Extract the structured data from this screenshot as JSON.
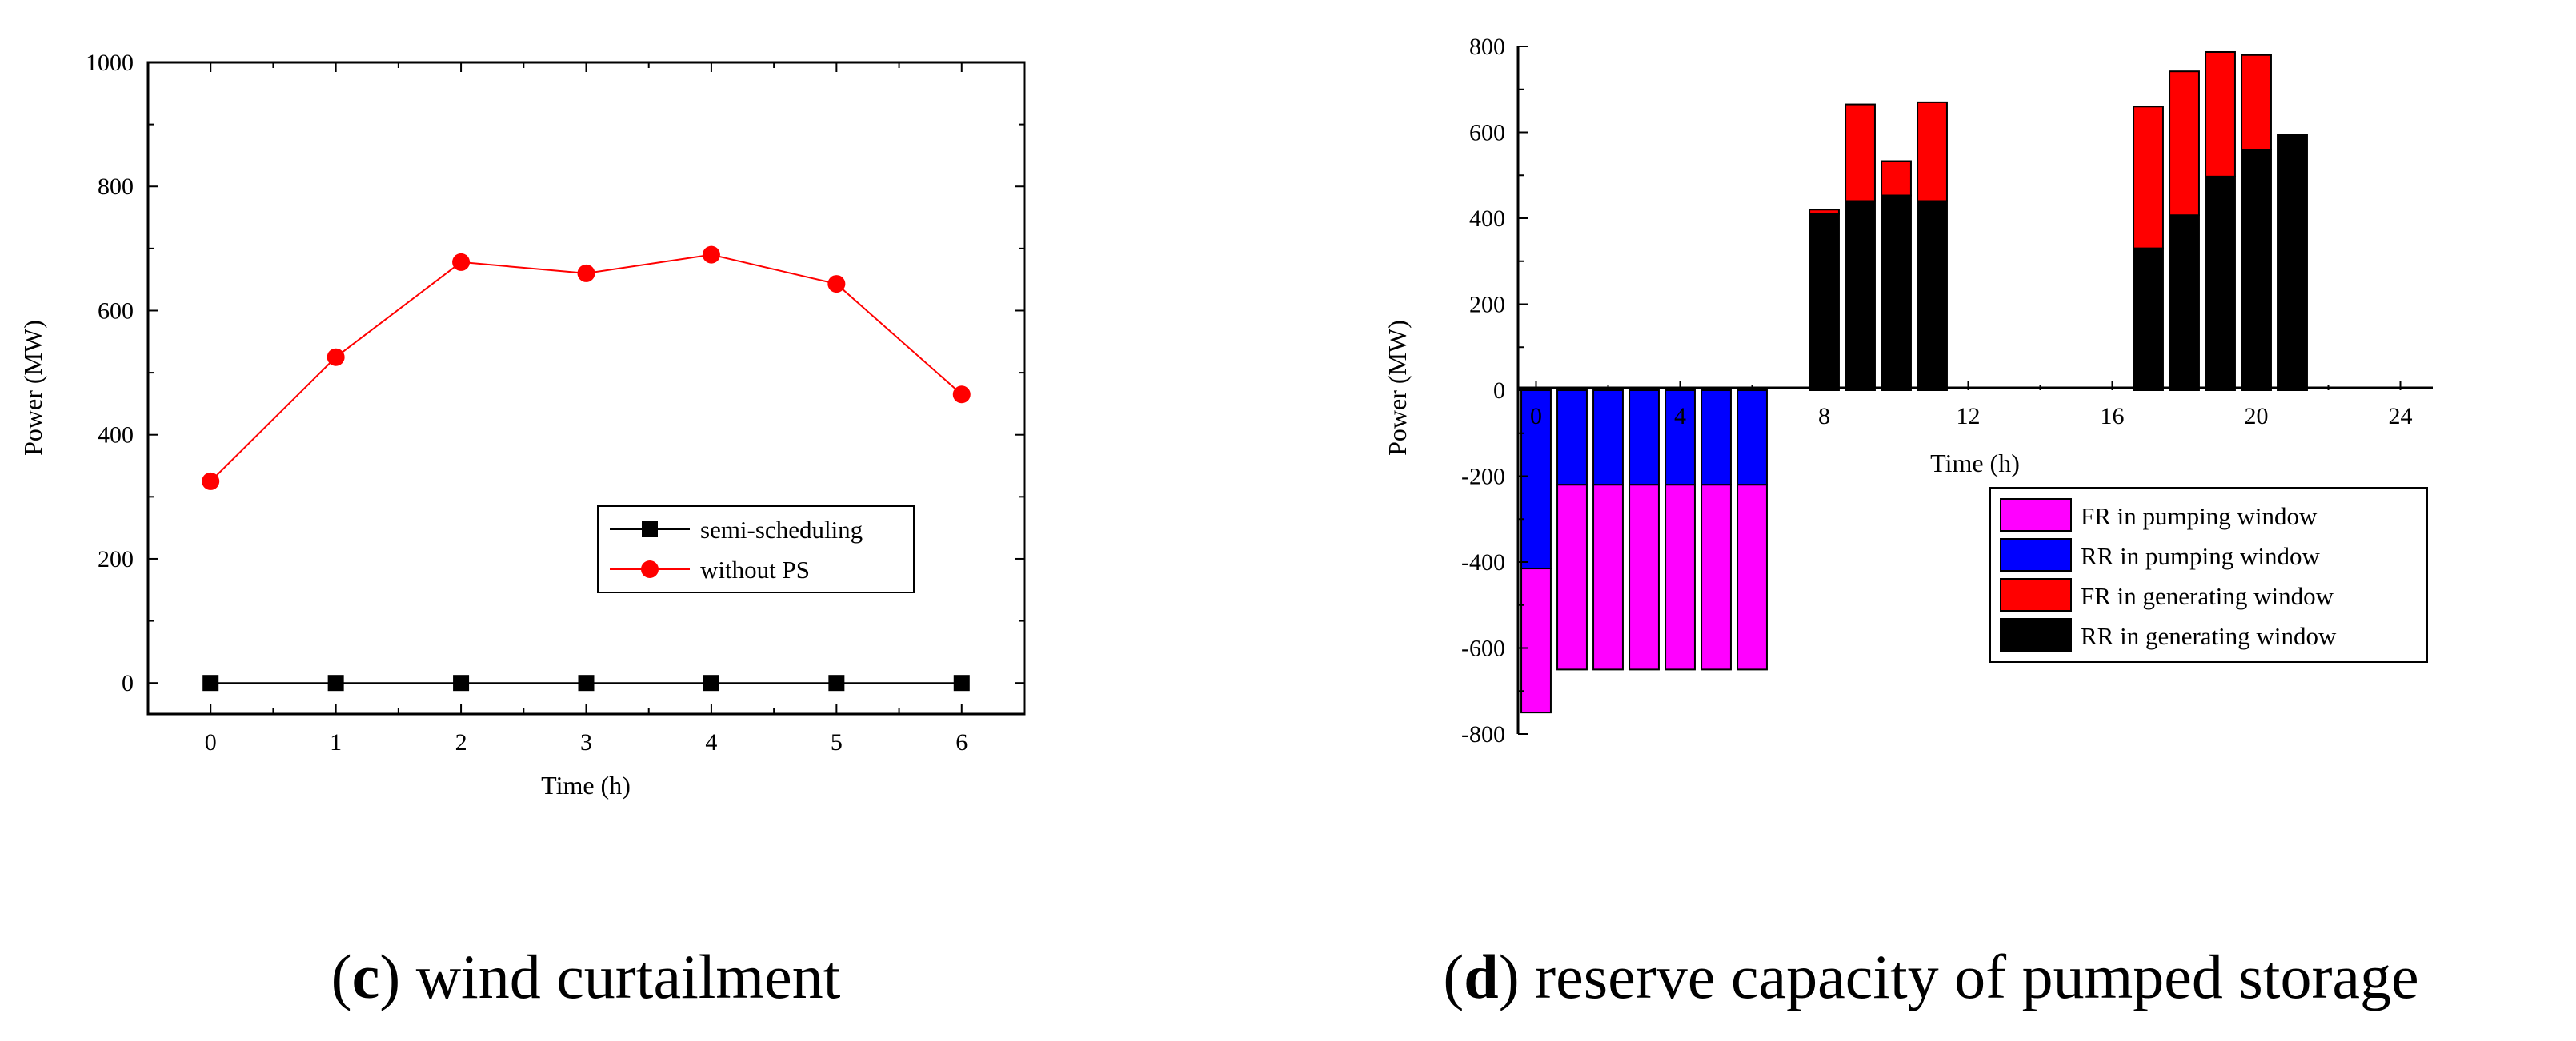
{
  "chart_data": [
    {
      "type": "line",
      "caption": {
        "letter": "c",
        "text": "wind curtailment"
      },
      "xlabel": "Time (h)",
      "ylabel": "Power (MW)",
      "xlim": [
        -0.5,
        6.5
      ],
      "ylim": [
        -50,
        1000
      ],
      "x_ticks": [
        0,
        1,
        2,
        3,
        4,
        5,
        6
      ],
      "y_ticks": [
        0,
        200,
        400,
        600,
        800,
        1000
      ],
      "x": [
        0,
        1,
        2,
        3,
        4,
        5,
        6
      ],
      "series": [
        {
          "name": "semi-scheduling",
          "color": "#000000",
          "marker": "square",
          "values": [
            0,
            0,
            0,
            0,
            0,
            0,
            0
          ]
        },
        {
          "name": "without PS",
          "color": "#ff0000",
          "marker": "circle",
          "values": [
            325,
            525,
            678,
            660,
            690,
            643,
            465
          ]
        }
      ],
      "legend": "center-right"
    },
    {
      "type": "bar",
      "stacked": true,
      "caption": {
        "letter": "d",
        "text": "reserve capacity of pumped storage"
      },
      "xlabel": "Time (h)",
      "ylabel": "Power (MW)",
      "xlim": [
        -0.5,
        24.9
      ],
      "ylim": [
        -800,
        800
      ],
      "x_ticks": [
        0,
        4,
        8,
        12,
        16,
        20,
        24
      ],
      "y_ticks": [
        -800,
        -600,
        -400,
        -200,
        0,
        200,
        400,
        600,
        800
      ],
      "categories": [
        0,
        1,
        2,
        3,
        4,
        5,
        6,
        8,
        9,
        10,
        11,
        17,
        18,
        19,
        20,
        21
      ],
      "series": [
        {
          "name": "FR in pumping window",
          "color": "#ff00ff",
          "values": [
            -335,
            -430,
            -430,
            -430,
            -430,
            -430,
            -430,
            0,
            0,
            0,
            0,
            0,
            0,
            0,
            0,
            0
          ]
        },
        {
          "name": "RR in pumping window",
          "color": "#0000ff",
          "values": [
            -415,
            -220,
            -220,
            -220,
            -220,
            -220,
            -220,
            0,
            0,
            0,
            0,
            0,
            0,
            0,
            0,
            0
          ]
        },
        {
          "name": "FR in generating window",
          "color": "#ff0000",
          "values": [
            0,
            0,
            0,
            0,
            0,
            0,
            0,
            10,
            225,
            80,
            230,
            330,
            335,
            290,
            220,
            0
          ]
        },
        {
          "name": "RR in generating window",
          "color": "#000000",
          "values": [
            0,
            0,
            0,
            0,
            0,
            0,
            0,
            410,
            440,
            453,
            440,
            330,
            407,
            497,
            560,
            595
          ]
        }
      ],
      "legend": "bottom-right"
    }
  ]
}
